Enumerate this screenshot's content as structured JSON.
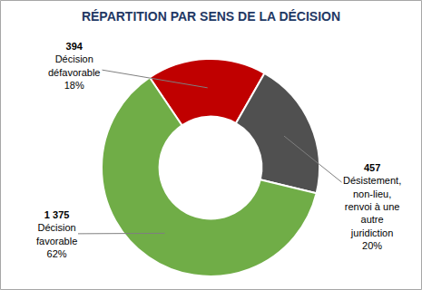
{
  "chart_data": {
    "type": "donut",
    "title": "RÉPARTITION PAR SENS DE LA DÉCISION",
    "categories": [
      "Décision défavorable",
      "Désistement, non-lieu, renvoi à une autre juridiction",
      "Décision favorable"
    ],
    "values": [
      394,
      457,
      1375
    ],
    "value_labels": [
      "394",
      "457",
      "1 375"
    ],
    "percent_labels": [
      "18%",
      "20%",
      "62%"
    ],
    "colors": [
      "#c00000",
      "#505050",
      "#70ad47"
    ],
    "data_labels": true
  }
}
